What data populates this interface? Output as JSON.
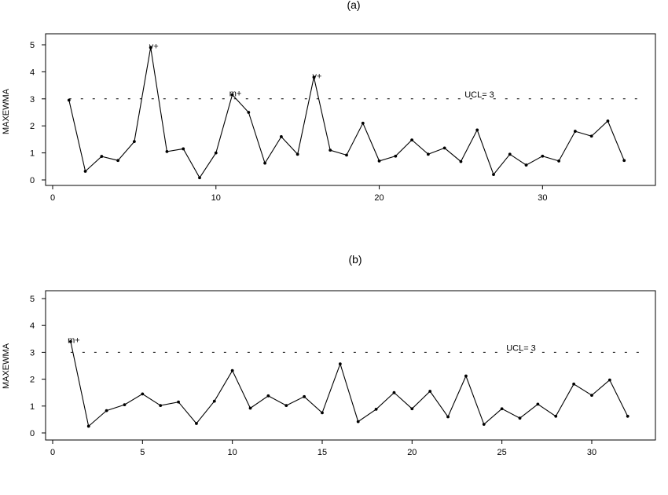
{
  "chart_data": [
    {
      "type": "line",
      "title": "(a)",
      "xlabel": "",
      "ylabel": "MAXEWMA",
      "xlim": [
        0,
        36
      ],
      "ylim": [
        0,
        5
      ],
      "xticks": [
        0,
        10,
        20,
        30
      ],
      "yticks": [
        0,
        1,
        2,
        3,
        4,
        5
      ],
      "grid": false,
      "x": [
        1,
        2,
        3,
        4,
        5,
        6,
        7,
        8,
        9,
        10,
        11,
        12,
        13,
        14,
        15,
        16,
        17,
        18,
        19,
        20,
        21,
        22,
        23,
        24,
        25,
        26,
        27,
        28,
        29,
        30,
        31,
        32,
        33,
        34,
        35
      ],
      "y": [
        2.95,
        0.32,
        0.87,
        0.72,
        1.42,
        4.9,
        1.05,
        1.15,
        0.08,
        1.0,
        3.15,
        2.5,
        0.62,
        1.6,
        0.95,
        3.8,
        1.1,
        0.92,
        2.1,
        0.7,
        0.88,
        1.48,
        0.95,
        1.18,
        0.68,
        1.85,
        0.2,
        0.95,
        0.55,
        0.88,
        0.7,
        1.8,
        1.62,
        2.18,
        0.72
      ],
      "ucl": {
        "value": 3.0,
        "label": "UCL= 3"
      },
      "annotations": [
        {
          "text": "v+",
          "x": 6,
          "y": 4.9
        },
        {
          "text": "m+",
          "x": 11,
          "y": 3.15
        },
        {
          "text": "v+",
          "x": 16,
          "y": 3.8
        }
      ]
    },
    {
      "type": "line",
      "title": "(b)",
      "xlabel": "",
      "ylabel": "MAXEWMA",
      "xlim": [
        0,
        32.8
      ],
      "ylim": [
        0,
        5
      ],
      "xticks": [
        0,
        5,
        10,
        15,
        20,
        25,
        30
      ],
      "yticks": [
        0,
        1,
        2,
        3,
        4,
        5
      ],
      "grid": false,
      "x": [
        1,
        2,
        3,
        4,
        5,
        6,
        7,
        8,
        9,
        10,
        11,
        12,
        13,
        14,
        15,
        16,
        17,
        18,
        19,
        20,
        21,
        22,
        23,
        24,
        25,
        26,
        27,
        28,
        29,
        30,
        31,
        32
      ],
      "y": [
        3.4,
        0.25,
        0.83,
        1.05,
        1.45,
        1.02,
        1.15,
        0.35,
        1.18,
        2.32,
        0.92,
        1.38,
        1.02,
        1.35,
        0.75,
        2.57,
        0.42,
        0.88,
        1.5,
        0.9,
        1.55,
        0.6,
        2.12,
        0.32,
        0.9,
        0.55,
        1.07,
        0.62,
        1.82,
        1.4,
        1.97,
        0.62
      ],
      "ucl": {
        "value": 3.0,
        "label": "UCL= 3"
      },
      "annotations": [
        {
          "text": "m+",
          "x": 1,
          "y": 3.4
        }
      ]
    }
  ]
}
